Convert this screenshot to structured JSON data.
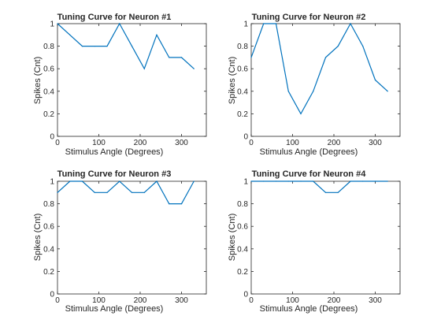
{
  "figure": {
    "line_color": "#0072BD",
    "axis_color": "#262626",
    "background": "#ffffff"
  },
  "chart_data": [
    {
      "type": "line",
      "title": "Tuning Curve for Neuron #1",
      "xlabel": "Stimulus Angle (Degrees)",
      "ylabel": "Spikes (Cnt)",
      "xlim": [
        0,
        360
      ],
      "ylim": [
        0,
        1
      ],
      "xticks": [
        0,
        100,
        200,
        300
      ],
      "yticks": [
        0,
        0.2,
        0.4,
        0.6,
        0.8,
        1
      ],
      "grid": false,
      "series": [
        {
          "x": [
            0,
            30,
            60,
            90,
            120,
            150,
            180,
            210,
            240,
            270,
            300,
            330
          ],
          "y": [
            1,
            0.9,
            0.8,
            0.8,
            0.8,
            1,
            0.8,
            0.6,
            0.9,
            0.7,
            0.7,
            0.6
          ]
        }
      ]
    },
    {
      "type": "line",
      "title": "Tuning Curve for Neuron #2",
      "xlabel": "Stimulus Angle (Degrees)",
      "ylabel": "Spikes (Cnt)",
      "xlim": [
        0,
        360
      ],
      "ylim": [
        0,
        1
      ],
      "xticks": [
        0,
        100,
        200,
        300
      ],
      "yticks": [
        0,
        0.2,
        0.4,
        0.6,
        0.8,
        1
      ],
      "grid": false,
      "series": [
        {
          "x": [
            0,
            30,
            60,
            90,
            120,
            150,
            180,
            210,
            240,
            270,
            300,
            330
          ],
          "y": [
            0.7,
            1,
            1,
            0.4,
            0.2,
            0.4,
            0.7,
            0.8,
            1,
            0.8,
            0.5,
            0.4
          ]
        }
      ]
    },
    {
      "type": "line",
      "title": "Tuning Curve for Neuron #3",
      "xlabel": "Stimulus Angle (Degrees)",
      "ylabel": "Spikes (Cnt)",
      "xlim": [
        0,
        360
      ],
      "ylim": [
        0,
        1
      ],
      "xticks": [
        0,
        100,
        200,
        300
      ],
      "yticks": [
        0,
        0.2,
        0.4,
        0.6,
        0.8,
        1
      ],
      "grid": false,
      "series": [
        {
          "x": [
            0,
            30,
            60,
            90,
            120,
            150,
            180,
            210,
            240,
            270,
            300,
            330
          ],
          "y": [
            0.9,
            1,
            1,
            0.9,
            0.9,
            1,
            0.9,
            0.9,
            1,
            0.8,
            0.8,
            1
          ]
        }
      ]
    },
    {
      "type": "line",
      "title": "Tuning Curve for Neuron #4",
      "xlabel": "Stimulus Angle (Degrees)",
      "ylabel": "Spikes (Cnt)",
      "xlim": [
        0,
        360
      ],
      "ylim": [
        0,
        1
      ],
      "xticks": [
        0,
        100,
        200,
        300
      ],
      "yticks": [
        0,
        0.2,
        0.4,
        0.6,
        0.8,
        1
      ],
      "grid": false,
      "series": [
        {
          "x": [
            0,
            30,
            60,
            90,
            120,
            150,
            180,
            210,
            240,
            270,
            300,
            330
          ],
          "y": [
            1,
            1,
            1,
            1,
            1,
            1,
            0.9,
            0.9,
            1,
            1,
            1,
            1
          ]
        }
      ]
    }
  ]
}
